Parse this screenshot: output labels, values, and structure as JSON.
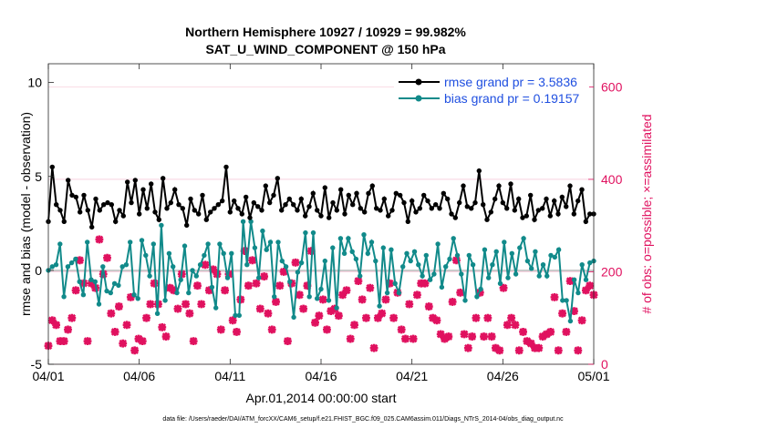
{
  "chart_data": {
    "type": "line",
    "title": "Northern Hemisphere 10927 / 10929 = 99.982%",
    "subtitle": "SAT_U_WIND_COMPONENT @ 150 hPa",
    "xlabel": "Apr.01,2014 00:00:00 start",
    "ylabel": "rmse and bias (model - observation)",
    "y2label": "# of obs: o=possible; ×=assimilated",
    "xlim": [
      0,
      30
    ],
    "ylim": [
      -5,
      11
    ],
    "y2lim": [
      0,
      650
    ],
    "xticks": [
      0,
      5,
      10,
      15,
      20,
      25,
      30
    ],
    "xticklabels": [
      "04/01",
      "04/06",
      "04/11",
      "04/16",
      "04/21",
      "04/26",
      "05/01"
    ],
    "yticks": [
      -5,
      0,
      5,
      10
    ],
    "y2ticks": [
      0,
      200,
      400,
      600
    ],
    "footnote": "data file: /Users/raeder/DAI/ATM_forcXX/CAM6_setup/f.e21.FHIST_BGC.f09_025.CAM6assim.011/Diags_NTrS_2014-04/obs_diag_output.nc",
    "legend_position": "top-right",
    "series": [
      {
        "name": "rmse grand pr = 3.5836",
        "color": "#000000",
        "marker": "circle",
        "values": [
          2.6,
          5.5,
          3.5,
          3.2,
          2.6,
          4.8,
          4.0,
          3.9,
          3.1,
          4.0,
          3.2,
          2.3,
          3.8,
          3.2,
          3.5,
          3.6,
          3.5,
          2.6,
          3.2,
          2.9,
          4.7,
          3.6,
          4.8,
          3.0,
          4.3,
          3.3,
          4.6,
          3.1,
          2.7,
          4.9,
          3.3,
          3.6,
          4.3,
          3.5,
          3.3,
          2.4,
          3.8,
          3.2,
          3.0,
          4.0,
          2.7,
          3.1,
          3.3,
          3.5,
          3.7,
          5.5,
          3.1,
          3.7,
          3.3,
          3.0,
          3.9,
          2.8,
          3.6,
          3.4,
          3.2,
          4.5,
          3.6,
          4.0,
          4.9,
          3.2,
          3.5,
          3.8,
          3.5,
          3.2,
          3.8,
          2.9,
          3.4,
          4.1,
          3.2,
          2.9,
          4.4,
          2.8,
          3.6,
          3.2,
          4.3,
          3.0,
          4.0,
          3.5,
          4.1,
          3.3,
          3.1,
          4.1,
          4.5,
          3.3,
          3.2,
          3.8,
          2.9,
          3.2,
          4.1,
          4.0,
          3.6,
          2.6,
          3.7,
          3.1,
          3.3,
          4.0,
          3.7,
          3.3,
          3.5,
          3.3,
          4.1,
          3.8,
          3.0,
          2.8,
          3.6,
          4.5,
          3.4,
          3.3,
          3.6,
          5.3,
          3.5,
          2.7,
          3.1,
          3.8,
          4.5,
          3.6,
          3.3,
          4.6,
          3.2,
          3.8,
          2.8,
          2.9,
          4.0,
          2.7,
          3.2,
          3.3,
          3.8,
          2.9,
          3.7,
          3.0,
          3.9,
          3.4,
          4.5,
          3.0,
          3.7,
          4.3,
          2.6,
          3.0,
          3.0
        ]
      },
      {
        "name": "bias grand pr = 0.19157",
        "color": "#118a8a",
        "marker": "circle",
        "values": [
          0.0,
          0.2,
          0.3,
          1.4,
          -1.4,
          0.2,
          0.4,
          0.6,
          -0.6,
          -1.3,
          1.5,
          -0.5,
          -0.6,
          -1.8,
          0.2,
          -1.1,
          -1.2,
          -0.7,
          -0.8,
          0.2,
          0.3,
          1.5,
          -1.3,
          -1.5,
          1.6,
          0.8,
          -0.3,
          1.4,
          -2.3,
          2.4,
          -1.6,
          0.9,
          0.2,
          -1.2,
          -0.5,
          1.3,
          -1.2,
          0.0,
          -0.3,
          0.3,
          0.8,
          1.4,
          -0.9,
          -2.0,
          1.4,
          0.9,
          -0.4,
          0.9,
          -2.4,
          -2.4,
          2.6,
          0.3,
          2.6,
          1.2,
          -0.4,
          2.1,
          1.1,
          1.5,
          -1.4,
          1.5,
          0.5,
          0.2,
          -0.6,
          -2.5,
          -0.1,
          0.4,
          2.0,
          -1.4,
          2.0,
          -1.5,
          -1.0,
          0.5,
          -1.6,
          1.2,
          -2.0,
          1.7,
          0.9,
          1.7,
          1.0,
          0.6,
          -0.3,
          1.9,
          0.9,
          1.5,
          0.5,
          -1.9,
          1.2,
          -1.2,
          1.1,
          -0.7,
          -1.2,
          0.2,
          0.9,
          0.5,
          1.0,
          0.3,
          -0.3,
          0.8,
          -0.5,
          -0.2,
          1.4,
          -0.9,
          0.2,
          0.6,
          1.7,
          0.8,
          -0.2,
          -1.6,
          0.8,
          0.3,
          -1.4,
          -1.0,
          1.1,
          -0.4,
          0.3,
          1.0,
          -0.7,
          1.5,
          -0.4,
          0.9,
          -0.2,
          1.2,
          1.7,
          0.5,
          0.1,
          1.0,
          -0.3,
          0.3,
          -0.3,
          0.8,
          0.7,
          1.1,
          -1.6,
          -1.6,
          -2.7,
          -0.5,
          -1.2,
          0.3,
          -0.5,
          0.4,
          0.5
        ]
      },
      {
        "name": "assimilated",
        "axis": "right",
        "color": "#e0115f",
        "marker": "x",
        "values": [
          40,
          95,
          85,
          50,
          50,
          75,
          100,
          160,
          225,
          175,
          50,
          175,
          165,
          270,
          195,
          230,
          110,
          70,
          125,
          45,
          85,
          145,
          30,
          55,
          50,
          100,
          130,
          175,
          130,
          80,
          60,
          165,
          160,
          120,
          195,
          130,
          110,
          50,
          170,
          130,
          215,
          160,
          205,
          195,
          75,
          160,
          195,
          95,
          70,
          140,
          245,
          170,
          225,
          175,
          120,
          190,
          110,
          75,
          135,
          170,
          200,
          50,
          175,
          220,
          150,
          120,
          170,
          245,
          90,
          105,
          140,
          75,
          115,
          120,
          105,
          150,
          160,
          55,
          85,
          180,
          140,
          100,
          165,
          35,
          100,
          110,
          140,
          175,
          100,
          155,
          75,
          55,
          130,
          55,
          150,
          175,
          175,
          125,
          100,
          95,
          65,
          55,
          60,
          135,
          225,
          155,
          65,
          35,
          60,
          100,
          155,
          60,
          100,
          60,
          35,
          30,
          165,
          85,
          100,
          85,
          30,
          70,
          50,
          45,
          35,
          35,
          60,
          65,
          70,
          145,
          30,
          110,
          70,
          180,
          115,
          30,
          95,
          160,
          170,
          150
        ]
      }
    ]
  }
}
